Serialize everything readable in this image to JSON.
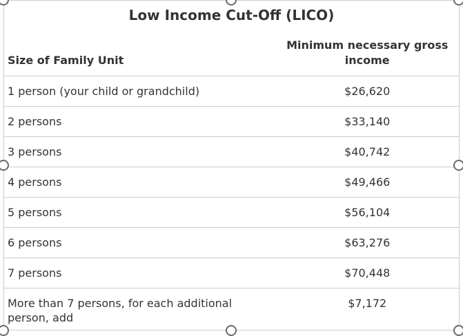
{
  "table": {
    "title": "Low Income Cut-Off (LICO)",
    "columns": [
      "Size of Family Unit",
      "Minimum necessary gross income"
    ],
    "rows": [
      {
        "label": "1 person (your child or grandchild)",
        "value": "$26,620"
      },
      {
        "label": "2 persons",
        "value": "$33,140"
      },
      {
        "label": "3 persons",
        "value": "$40,742"
      },
      {
        "label": "4 persons",
        "value": "$49,466"
      },
      {
        "label": "5 persons",
        "value": "$56,104"
      },
      {
        "label": "6 persons",
        "value": "$63,276"
      },
      {
        "label": "7 persons",
        "value": "$70,448"
      },
      {
        "label": "More than 7 persons, for each additional person, add",
        "value": "$7,172"
      }
    ],
    "colors": {
      "text": "#333333",
      "divider": "#cccccc",
      "background": "#ffffff",
      "handle_border": "#696969"
    }
  }
}
